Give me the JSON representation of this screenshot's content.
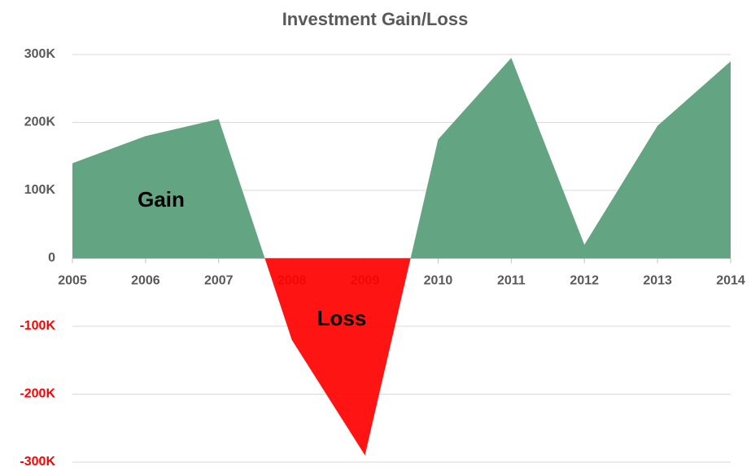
{
  "chart_data": {
    "type": "area",
    "title": "Investment Gain/Loss",
    "categories": [
      "2005",
      "2006",
      "2007",
      "2008",
      "2009",
      "2010",
      "2011",
      "2012",
      "2013",
      "2014"
    ],
    "values": [
      140000,
      180000,
      205000,
      -120000,
      -290000,
      175000,
      295000,
      20000,
      195000,
      290000
    ],
    "color": "#63a583",
    "negative_color": "#ff0000",
    "ylim": [
      -300000,
      300000
    ],
    "yticks": [
      {
        "value": -300000,
        "label": "-300K"
      },
      {
        "value": -200000,
        "label": "-200K"
      },
      {
        "value": -100000,
        "label": "-100K"
      },
      0,
      {
        "value": 100000,
        "label": "100K"
      },
      {
        "value": 200000,
        "label": "200K"
      },
      {
        "value": 300000,
        "label": "300K"
      }
    ],
    "grid": true,
    "annotations": [
      {
        "text": "Gain"
      },
      {
        "text": "Loss"
      }
    ]
  }
}
